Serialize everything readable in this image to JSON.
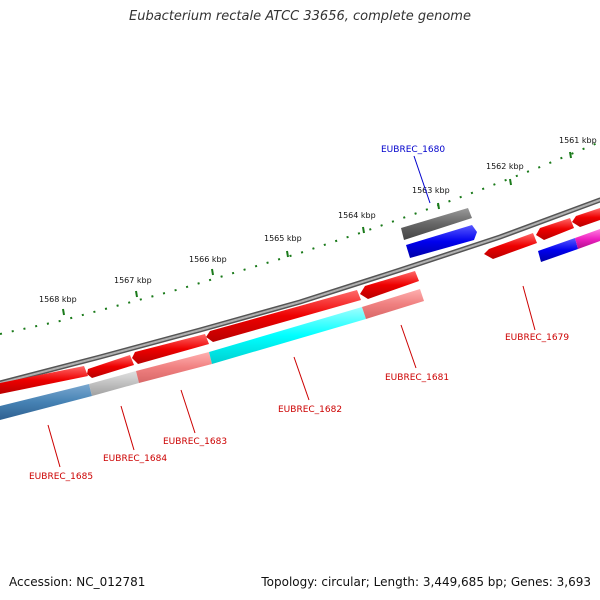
{
  "title": "Eubacterium rectale ATCC 33656, complete genome",
  "footer": {
    "accession": "Accession: NC_012781",
    "info": "Topology: circular; Length: 3,449,685 bp; Genes: 3,693"
  },
  "colors": {
    "backbone": "#7a7a7a",
    "ticks": "#1a7a1a",
    "label_forward": "#0000cc",
    "label_reverse": "#cc0000"
  },
  "ticks": [
    "1561 kbp",
    "1562 kbp",
    "1563 kbp",
    "1564 kbp",
    "1565 kbp",
    "1566 kbp",
    "1567 kbp",
    "1568 kbp"
  ],
  "genes": [
    {
      "id": "EUBREC_1680",
      "strand": "+",
      "color": "#1010ee",
      "cog_color": "#666666"
    },
    {
      "id": "EUBREC_1679",
      "strand": "-",
      "color": "#ee1010",
      "cog_color": "#1010ee"
    },
    {
      "id": "EUBREC_1681",
      "strand": "-",
      "color": "#ee1010",
      "cog_color": "#f08080"
    },
    {
      "id": "EUBREC_1682",
      "strand": "-",
      "color": "#ee1010",
      "cog_color": "#00ffff"
    },
    {
      "id": "EUBREC_1683",
      "strand": "-",
      "color": "#ee1010",
      "cog_color": "#f08080"
    },
    {
      "id": "EUBREC_1684",
      "strand": "-",
      "color": "#ee1010",
      "cog_color": "#c0c0c0"
    },
    {
      "id": "EUBREC_1685",
      "strand": "-",
      "color": "#ee1010",
      "cog_color": "#4682b4"
    }
  ]
}
